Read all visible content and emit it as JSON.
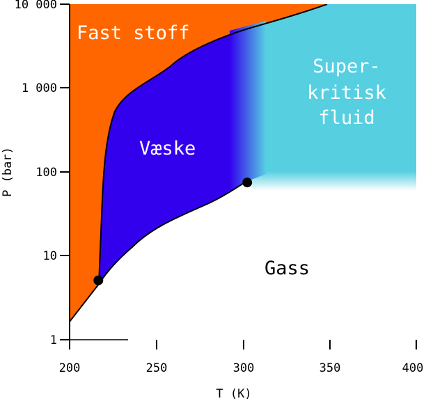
{
  "chart_data": {
    "type": "phase-diagram",
    "title": "",
    "xlabel": "T (K)",
    "ylabel": "P (bar)",
    "xlim": [
      200,
      400
    ],
    "ylim": [
      1,
      10000
    ],
    "yscale": "log",
    "x_ticks": [
      "200",
      "250",
      "300",
      "350",
      "400"
    ],
    "y_ticks": [
      "1",
      "10",
      "100",
      "1 000",
      "10 000"
    ],
    "regions": {
      "solid": "Fast stoff",
      "liquid": "Væske",
      "supercritical": "Super- kritisk fluid",
      "gas": "Gass"
    },
    "supercritical_lines": [
      "Super-",
      "kritisk",
      "fluid"
    ],
    "triple_point": {
      "T": 216.6,
      "P": 5.1
    },
    "critical_point": {
      "T": 302.5,
      "P": 75
    },
    "colors": {
      "solid": "#ff6600",
      "liquid": "#3300ee",
      "supercritical": "#56cfe1",
      "gas": "#ffffff",
      "label_light": "#ffffff",
      "label_dark": "#000000",
      "line": "#000000"
    }
  }
}
